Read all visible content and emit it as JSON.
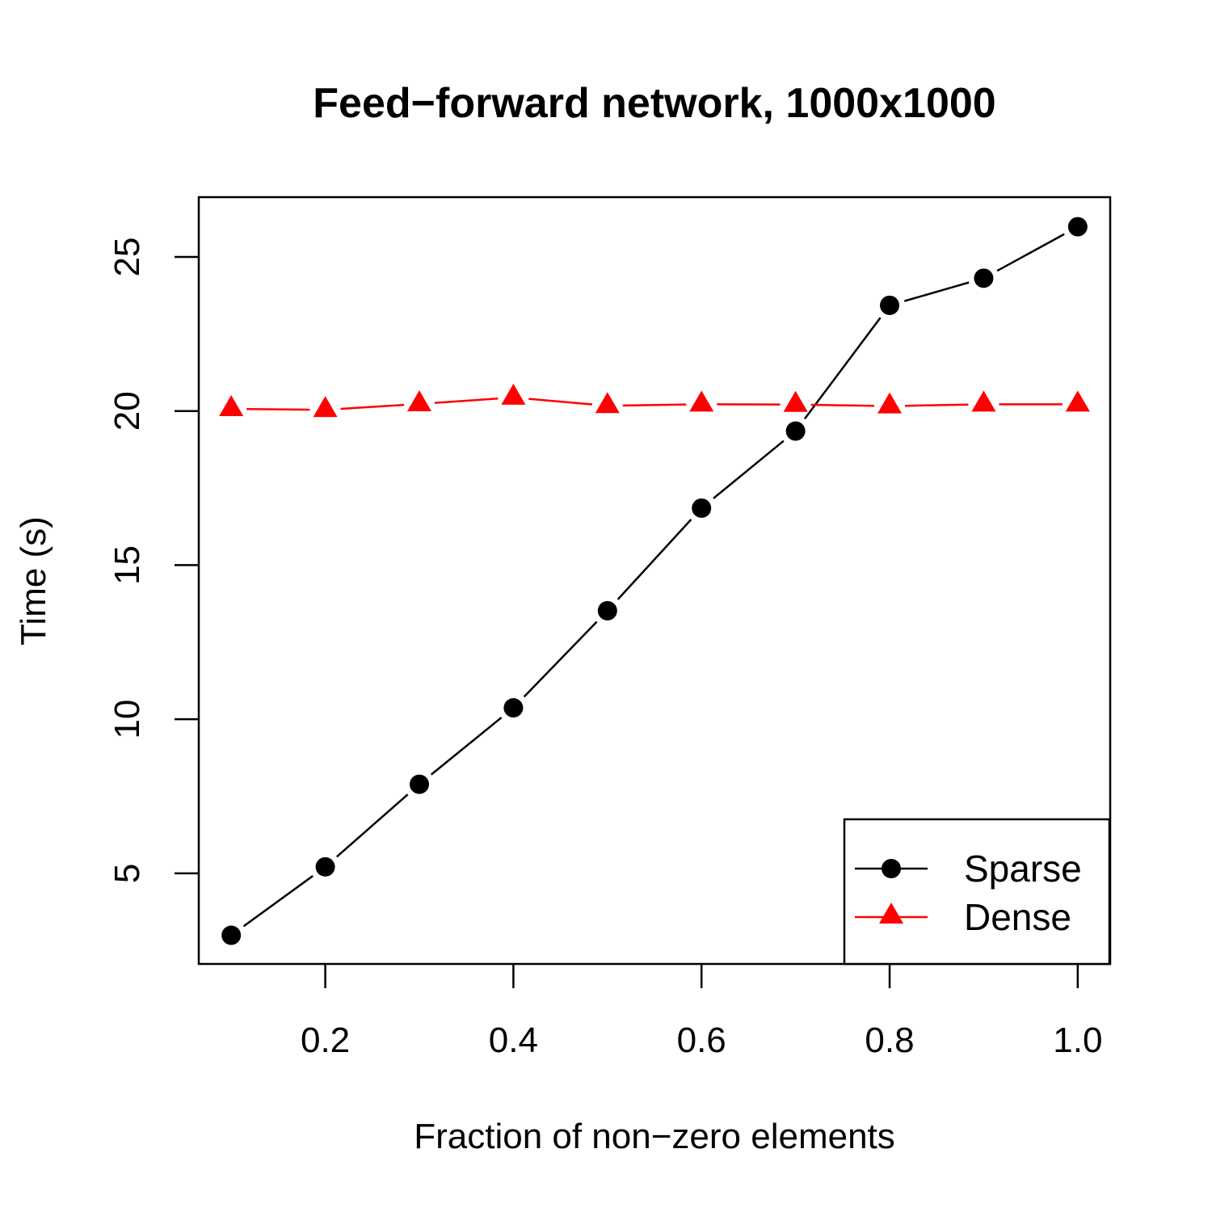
{
  "chart_data": {
    "type": "line",
    "title": "Feed−forward network, 1000x1000",
    "xlabel": "Fraction of non−zero elements",
    "ylabel": "Time (s)",
    "xlim": [
      0.0655,
      1.0345
    ],
    "ylim": [
      2.06,
      26.94
    ],
    "x_ticks": [
      0.2,
      0.4,
      0.6,
      0.8,
      1.0
    ],
    "x_tick_labels": [
      "0.2",
      "0.4",
      "0.6",
      "0.8",
      "1.0"
    ],
    "y_ticks": [
      5,
      10,
      15,
      20,
      25
    ],
    "y_tick_labels": [
      "5",
      "10",
      "15",
      "20",
      "25"
    ],
    "grid": false,
    "legend_position": "bottom-right",
    "x": [
      0.1,
      0.2,
      0.3,
      0.4,
      0.5,
      0.6,
      0.7,
      0.8,
      0.9,
      1.0
    ],
    "series": [
      {
        "name": "Sparse",
        "color": "#000000",
        "marker": "circle",
        "values": [
          2.99,
          5.21,
          7.89,
          10.37,
          13.52,
          16.85,
          19.35,
          23.43,
          24.31,
          25.98
        ]
      },
      {
        "name": "Dense",
        "color": "#ff0000",
        "marker": "triangle",
        "values": [
          20.07,
          20.04,
          20.23,
          20.44,
          20.17,
          20.22,
          20.21,
          20.16,
          20.22,
          20.22
        ]
      }
    ]
  }
}
